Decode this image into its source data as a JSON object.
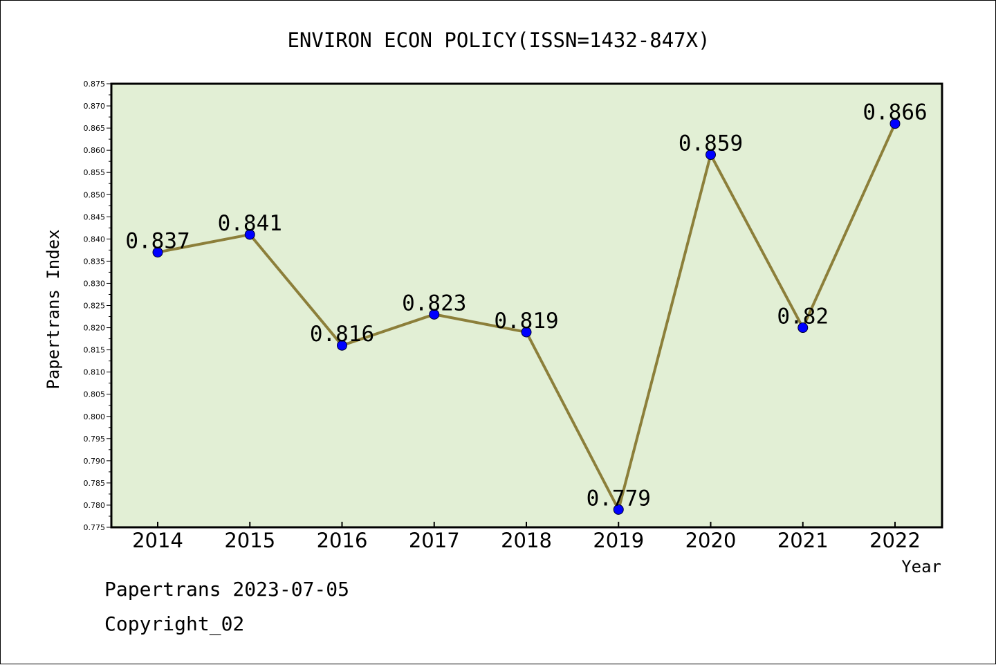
{
  "chart_data": {
    "type": "line",
    "title": "ENVIRON ECON POLICY(ISSN=1432-847X)",
    "xlabel": "Year",
    "ylabel": "Papertrans Index",
    "categories": [
      "2014",
      "2015",
      "2016",
      "2017",
      "2018",
      "2019",
      "2020",
      "2021",
      "2022"
    ],
    "series": [
      {
        "values": [
          0.837,
          0.841,
          0.816,
          0.823,
          0.819,
          0.779,
          0.859,
          0.82,
          0.866
        ],
        "labels": [
          "0.837",
          "0.841",
          "0.816",
          "0.823",
          "0.819",
          "0.779",
          "0.859",
          "0.82",
          "0.866"
        ]
      }
    ],
    "ylim": [
      0.775,
      0.875
    ],
    "yticks": [
      "0.775",
      "0.780",
      "0.785",
      "0.790",
      "0.795",
      "0.800",
      "0.805",
      "0.810",
      "0.815",
      "0.820",
      "0.825",
      "0.830",
      "0.835",
      "0.840",
      "0.845",
      "0.850",
      "0.855",
      "0.860",
      "0.865",
      "0.870",
      "0.875"
    ],
    "grid": false,
    "colors": {
      "plot_background": "#e2efd5",
      "line": "#8c7f3a",
      "marker": "#0000ff"
    }
  },
  "footer": {
    "line1": "Papertrans 2023-07-05",
    "line2": "Copyright_02"
  }
}
